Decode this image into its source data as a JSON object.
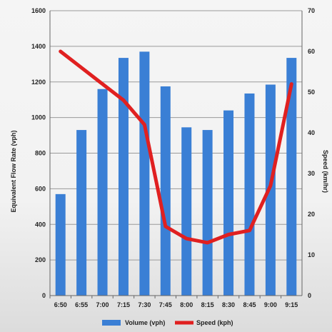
{
  "chart_data": {
    "type": "bar",
    "categories": [
      "6:50",
      "6:55",
      "7:00",
      "7:15",
      "7:30",
      "7:45",
      "8:00",
      "8:15",
      "8:30",
      "8:45",
      "9:00",
      "9:15"
    ],
    "series": [
      {
        "name": "Volume  (vph)",
        "type": "bar",
        "axis": "left",
        "color": "#3a7fd5",
        "values": [
          570,
          930,
          1160,
          1335,
          1370,
          1175,
          945,
          930,
          1040,
          1135,
          1185,
          1335
        ]
      },
      {
        "name": "Speed  (kph)",
        "type": "line",
        "axis": "right",
        "color": "#e02020",
        "values": [
          60,
          56,
          52,
          48,
          42,
          17,
          14,
          13,
          15,
          16,
          27,
          52
        ]
      }
    ],
    "ylabel": "Equivalent Flow Rate (vph)",
    "y2label": "Speed (km/hr)",
    "ylim": [
      0,
      1600
    ],
    "yticks": [
      "0",
      "200",
      "400",
      "600",
      "800",
      "1000",
      "1200",
      "1400",
      "1600"
    ],
    "y2lim": [
      0,
      70
    ],
    "y2ticks": [
      "0",
      "10",
      "20",
      "30",
      "40",
      "50",
      "60",
      "70"
    ],
    "grid": true,
    "legend": "bottom"
  }
}
